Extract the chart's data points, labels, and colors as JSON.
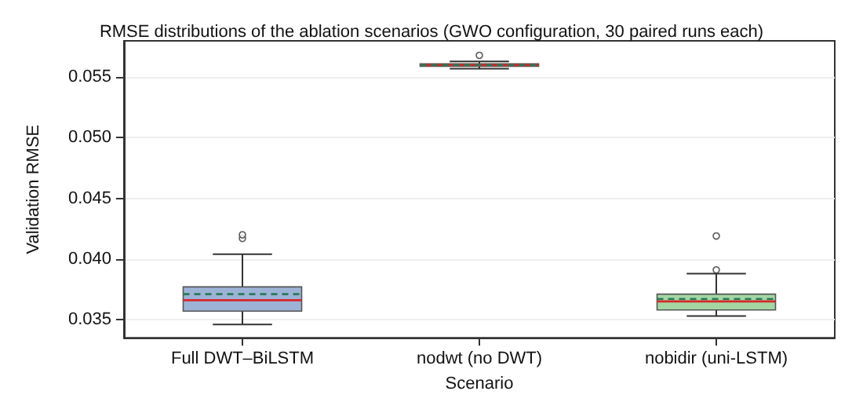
{
  "chart_data": {
    "type": "box",
    "title": "RMSE distributions of the ablation scenarios (GWO configuration, 30 paired runs each)",
    "xlabel": "Scenario",
    "ylabel": "Validation RMSE",
    "categories": [
      "Full DWT–BiLSTM",
      "nodwt (no DWT)",
      "nobidir (uni-LSTM)"
    ],
    "colors": [
      "#9db3d6",
      "#9a9a9a",
      "#a3d6a3"
    ],
    "boxes": [
      {
        "low": 0.0346,
        "q1": 0.0357,
        "median": 0.0366,
        "q3": 0.0377,
        "high": 0.0404,
        "mean": 0.0371,
        "outliers": [
          0.0417,
          0.042
        ]
      },
      {
        "low": 0.0557,
        "q1": 0.0559,
        "median": 0.056,
        "q3": 0.0561,
        "high": 0.0563,
        "mean": 0.056,
        "outliers": [
          0.0568
        ]
      },
      {
        "low": 0.0353,
        "q1": 0.0358,
        "median": 0.0365,
        "q3": 0.0371,
        "high": 0.0388,
        "mean": 0.0367,
        "outliers": [
          0.0391,
          0.0419
        ]
      }
    ],
    "ylim": [
      0.0335,
      0.058
    ],
    "yticks": [
      0.035,
      {
        "value": 0.04,
        "label": "0.040"
      },
      0.045,
      {
        "value": 0.05,
        "label": "0.050"
      },
      0.055
    ],
    "grid": "y"
  }
}
